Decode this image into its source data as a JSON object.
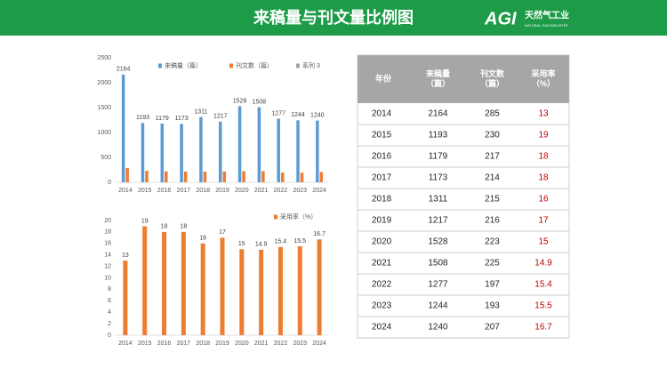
{
  "header": {
    "title": "来稿量与刊文量比例图",
    "logo_mark": "AGI",
    "logo_text": "天然气工业",
    "logo_sub": "NATURAL GAS INDUSTRY"
  },
  "chart_data": [
    {
      "type": "bar",
      "categories": [
        "2014",
        "2015",
        "2016",
        "2017",
        "2018",
        "2019",
        "2020",
        "2021",
        "2022",
        "2023",
        "2024"
      ],
      "series": [
        {
          "name": "来稿量（篇）",
          "color": "#5b9bd5",
          "labels": true,
          "values": [
            2164,
            1193,
            1179,
            1173,
            1311,
            1217,
            1528,
            1508,
            1277,
            1244,
            1240
          ]
        },
        {
          "name": "刊文数（篇）",
          "color": "#ed7d31",
          "labels": false,
          "values": [
            285,
            230,
            217,
            214,
            215,
            216,
            223,
            225,
            197,
            193,
            207
          ]
        },
        {
          "name": "系列 3",
          "color": "#a5a5a5",
          "labels": false,
          "values": [
            null,
            null,
            null,
            null,
            null,
            null,
            null,
            null,
            null,
            null,
            null
          ]
        }
      ],
      "ylim": [
        0,
        2500
      ],
      "yticks": [
        0,
        500,
        1000,
        1500,
        2000,
        2500
      ],
      "legend": "top"
    },
    {
      "type": "bar",
      "categories": [
        "2014",
        "2015",
        "2016",
        "2017",
        "2018",
        "2019",
        "2020",
        "2021",
        "2022",
        "2023",
        "2024"
      ],
      "series": [
        {
          "name": "采用率（%）",
          "color": "#ed7d31",
          "labels": true,
          "values": [
            13,
            19,
            18,
            18,
            16,
            17,
            15,
            14.9,
            15.4,
            15.5,
            16.7
          ]
        }
      ],
      "ylim": [
        0,
        20
      ],
      "yticks": [
        0,
        2,
        4,
        6,
        8,
        10,
        12,
        14,
        16,
        18,
        20
      ],
      "legend": "top-right"
    }
  ],
  "table": {
    "header": [
      [
        "年份"
      ],
      [
        "来稿量",
        "（篇）"
      ],
      [
        "刊文数",
        "（篇）"
      ],
      [
        "采用率",
        "（%）"
      ]
    ],
    "rows": [
      [
        2014,
        2164,
        285,
        13
      ],
      [
        2015,
        1193,
        230,
        19
      ],
      [
        2016,
        1179,
        217,
        18
      ],
      [
        2017,
        1173,
        214,
        18
      ],
      [
        2018,
        1311,
        215,
        16
      ],
      [
        2019,
        1217,
        216,
        17
      ],
      [
        2020,
        1528,
        223,
        15
      ],
      [
        2021,
        1508,
        225,
        14.9
      ],
      [
        2022,
        1277,
        197,
        15.4
      ],
      [
        2023,
        1244,
        193,
        15.5
      ],
      [
        2024,
        1240,
        207,
        16.7
      ]
    ]
  }
}
